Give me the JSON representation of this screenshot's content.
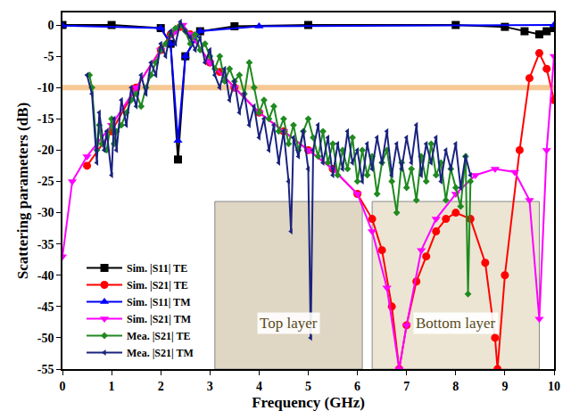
{
  "chart_data": {
    "type": "line",
    "x_label": "Frequency (GHz)",
    "y_label": "Scattering parameters (dB)",
    "xlim": [
      0,
      10
    ],
    "xticks": [
      0,
      1,
      2,
      3,
      4,
      5,
      6,
      7,
      8,
      9,
      10
    ],
    "ylim": [
      -55,
      2
    ],
    "yticks": [
      -55,
      -50,
      -45,
      -40,
      -35,
      -30,
      -25,
      -20,
      -15,
      -10,
      -5,
      0
    ],
    "grid": false,
    "legend": "lower left",
    "reference_line": -10,
    "annotations": [
      "Top layer",
      "Bottom layer"
    ],
    "series": [
      {
        "name": "Sim. |S11| TE",
        "color": "#000000",
        "marker": "square",
        "line_style": "solid",
        "x": [
          0,
          1,
          2,
          2.2,
          2.35,
          2.5,
          2.8,
          3.5,
          5,
          8,
          9,
          9.4,
          9.7,
          9.85,
          10
        ],
        "values": [
          0,
          0,
          -0.5,
          -3,
          -21.5,
          -5,
          -1,
          -0.2,
          0,
          0,
          -0.3,
          -1,
          -1.5,
          -1,
          -0.5
        ]
      },
      {
        "name": "Sim. |S21| TE",
        "color": "#ff0000",
        "marker": "circle",
        "line_style": "solid",
        "x": [
          0.5,
          1,
          1.5,
          2,
          2.2,
          2.4,
          2.6,
          3,
          3.2,
          3.5,
          4,
          4.5,
          5,
          5.5,
          6,
          6.3,
          6.5,
          6.7,
          6.85,
          7,
          7.2,
          7.4,
          7.6,
          7.8,
          8,
          8.3,
          8.6,
          8.8,
          8.85,
          9,
          9.3,
          9.5,
          9.7,
          9.85,
          10
        ],
        "values": [
          -22.5,
          -17,
          -10,
          -4,
          -1.5,
          -0.3,
          -1.5,
          -6,
          -7.5,
          -10,
          -14,
          -17,
          -20,
          -23,
          -27,
          -31,
          -36,
          -45,
          -55,
          -48,
          -41,
          -37,
          -33,
          -31,
          -30,
          -31,
          -38,
          -50,
          -55,
          -40,
          -20,
          -8.5,
          -4.5,
          -7,
          -12
        ]
      },
      {
        "name": "Sim. |S11| TM",
        "color": "#0000ff",
        "marker": "triangle-up",
        "line_style": "solid",
        "x": [
          0,
          2,
          2.2,
          2.35,
          2.5,
          2.8,
          4,
          10
        ],
        "values": [
          -0.1,
          -0.5,
          -3,
          -18.5,
          -5,
          -1,
          -0.2,
          0
        ]
      },
      {
        "name": "Sim. |S21| TM",
        "color": "#ff00ff",
        "marker": "triangle-down",
        "line_style": "solid",
        "x": [
          0,
          0.2,
          0.5,
          1,
          1.5,
          2,
          2.3,
          2.45,
          2.6,
          3,
          3.5,
          4,
          4.5,
          5,
          5.5,
          6,
          6.3,
          6.6,
          6.85,
          7,
          7.3,
          7.6,
          8,
          8.4,
          8.8,
          9.2,
          9.5,
          9.7,
          9.85,
          10
        ],
        "values": [
          -37,
          -25,
          -21,
          -16,
          -10,
          -4,
          -1,
          0,
          -1.5,
          -6,
          -10,
          -14,
          -17,
          -20,
          -23,
          -27,
          -33,
          -42,
          -55,
          -48,
          -36,
          -31,
          -27,
          -24,
          -23,
          -23.5,
          -28,
          -47,
          -20,
          -5
        ]
      },
      {
        "name": "Mea. |S21| TE",
        "color": "#1f8a1f",
        "marker": "diamond",
        "line_style": "solid",
        "x": [
          0.55,
          0.6,
          0.7,
          0.75,
          0.8,
          0.9,
          1.0,
          1.05,
          1.1,
          1.2,
          1.3,
          1.4,
          1.5,
          1.6,
          1.7,
          1.8,
          1.9,
          2.0,
          2.1,
          2.2,
          2.3,
          2.4,
          2.5,
          2.6,
          2.7,
          2.8,
          2.9,
          3.0,
          3.1,
          3.2,
          3.3,
          3.4,
          3.5,
          3.6,
          3.7,
          3.8,
          3.9,
          4.0,
          4.1,
          4.2,
          4.3,
          4.4,
          4.5,
          4.6,
          4.7,
          4.8,
          4.9,
          5.0,
          5.1,
          5.2,
          5.3,
          5.4,
          5.5,
          5.6,
          5.7,
          5.8,
          5.9,
          6.0,
          6.1,
          6.2,
          6.3,
          6.4,
          6.5,
          6.6,
          6.7,
          6.8,
          6.9,
          7.0,
          7.1,
          7.2,
          7.3,
          7.4,
          7.5,
          7.6,
          7.7,
          7.8,
          7.9,
          8.0,
          8.1,
          8.2,
          8.25,
          8.3
        ],
        "values": [
          -8,
          -10,
          -20,
          -16,
          -19,
          -20,
          -15,
          -19,
          -17,
          -16,
          -14,
          -12,
          -11,
          -13,
          -10,
          -8,
          -6,
          -4,
          -3,
          -1.5,
          -0.5,
          0,
          -1,
          -3,
          -1.5,
          -4,
          -3,
          -5,
          -7,
          -5,
          -9,
          -7,
          -9,
          -8,
          -11,
          -6,
          -10,
          -14,
          -12,
          -15,
          -13,
          -17,
          -15,
          -19,
          -16,
          -20,
          -17,
          -15,
          -18,
          -21,
          -17,
          -22,
          -19,
          -24,
          -20,
          -23,
          -18,
          -25,
          -20,
          -24,
          -21,
          -27,
          -22,
          -20,
          -25,
          -30,
          -22,
          -26,
          -23,
          -28,
          -21,
          -25,
          -19,
          -24,
          -22,
          -28,
          -23,
          -26,
          -29,
          -21,
          -43,
          -25
        ]
      },
      {
        "name": "Mea. |S21| TM",
        "color": "#1a237e",
        "marker": "triangle-left",
        "line_style": "solid",
        "x": [
          0.5,
          0.6,
          0.7,
          0.75,
          0.85,
          0.9,
          1.0,
          1.05,
          1.1,
          1.2,
          1.3,
          1.4,
          1.5,
          1.6,
          1.7,
          1.8,
          1.9,
          2.0,
          2.1,
          2.2,
          2.3,
          2.4,
          2.5,
          2.6,
          2.7,
          2.8,
          2.9,
          3.0,
          3.1,
          3.2,
          3.3,
          3.4,
          3.5,
          3.6,
          3.7,
          3.8,
          3.9,
          4.0,
          4.1,
          4.2,
          4.3,
          4.4,
          4.5,
          4.6,
          4.65,
          4.7,
          4.8,
          4.9,
          5.0,
          5.05,
          5.1,
          5.2,
          5.3,
          5.4,
          5.5,
          5.6,
          5.7,
          5.8,
          5.9,
          6.0,
          6.1,
          6.2,
          6.3,
          6.4,
          6.5,
          6.6,
          6.7,
          6.8,
          6.9,
          7.0,
          7.1,
          7.2,
          7.3,
          7.4,
          7.5,
          7.6,
          7.7,
          7.8,
          7.9,
          8.0,
          8.1,
          8.2,
          8.3
        ],
        "values": [
          -8,
          -11,
          -22,
          -14,
          -20,
          -17,
          -24,
          -15,
          -20,
          -12,
          -16,
          -10,
          -13,
          -8,
          -11,
          -6,
          -8,
          -3,
          -5,
          -1,
          -3,
          0.5,
          -1,
          -2,
          -4,
          -2,
          -6,
          -4,
          -8,
          -10,
          -7,
          -12,
          -9,
          -14,
          -11,
          -16,
          -13,
          -18,
          -15,
          -20,
          -16,
          -22,
          -17,
          -25,
          -33,
          -18,
          -21,
          -17,
          -23,
          -50,
          -20,
          -16,
          -22,
          -18,
          -24,
          -19,
          -23,
          -17,
          -22,
          -20,
          -25,
          -19,
          -23,
          -18,
          -22,
          -17,
          -24,
          -19,
          -23,
          -18,
          -22,
          -16,
          -24,
          -19,
          -22,
          -18,
          -25,
          -20,
          -23,
          -19,
          -26,
          -21,
          -24
        ]
      }
    ]
  }
}
